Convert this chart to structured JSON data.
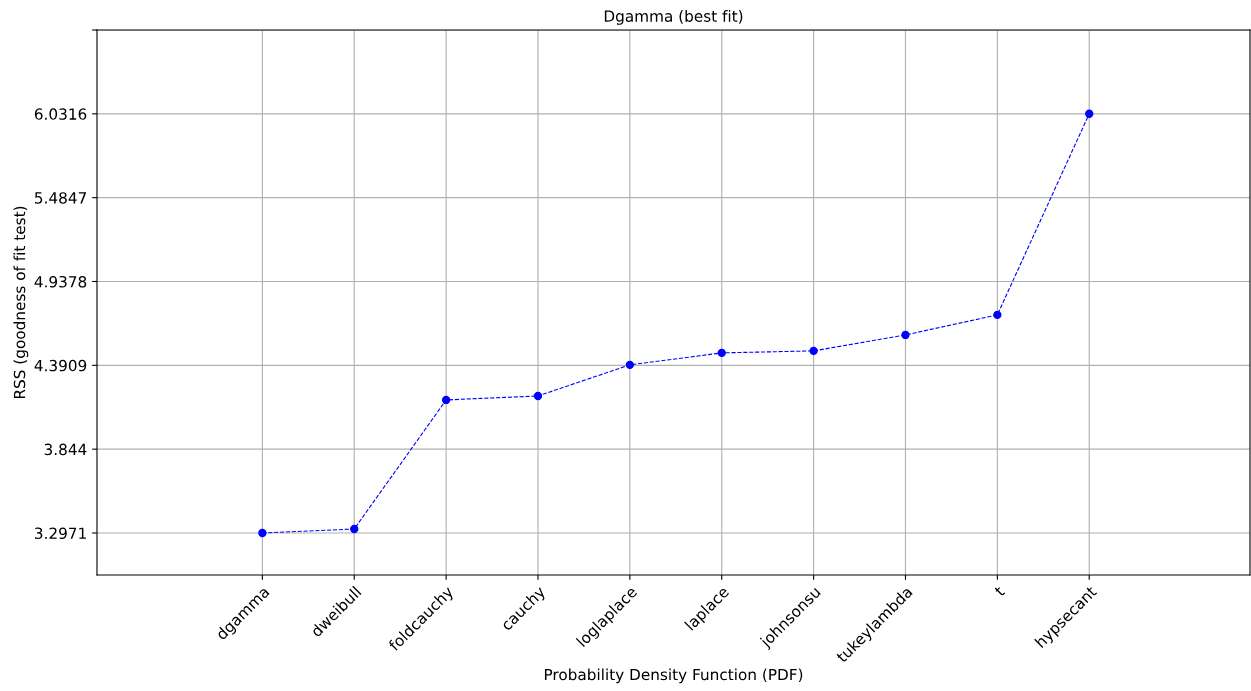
{
  "chart_data": {
    "type": "line",
    "title": "Dgamma (best fit)",
    "xlabel": "Probability Density Function (PDF)",
    "ylabel": "RSS (goodness of fit test)",
    "categories": [
      "dgamma",
      "dweibull",
      "foldcauchy",
      "cauchy",
      "loglaplace",
      "laplace",
      "johnsonsu",
      "tukeylambda",
      "t",
      "hypsecant"
    ],
    "series": [
      {
        "color": "#0000ff",
        "values": [
          3.297,
          3.323,
          4.165,
          4.191,
          4.394,
          4.472,
          4.485,
          4.589,
          4.72,
          6.032
        ]
      }
    ],
    "ylim": [
      3.023,
      6.5785
    ],
    "yticks": [
      3.2971,
      3.844,
      4.3909,
      4.9378,
      5.4847,
      6.0316,
      {
        "value": 6.5785,
        "label": null
      }
    ],
    "grid": true,
    "marker": "circle",
    "line_style": "dashed"
  }
}
